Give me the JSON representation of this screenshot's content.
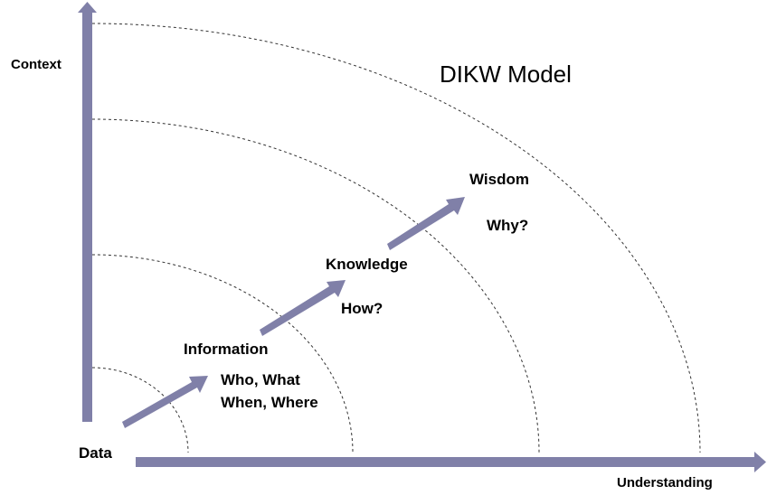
{
  "title": "DIKW Model",
  "axes": {
    "y_label": "Context",
    "x_label": "Understanding"
  },
  "stages": {
    "data": {
      "label": "Data"
    },
    "information": {
      "label": "Information",
      "question_line1": "Who, What",
      "question_line2": "When, Where"
    },
    "knowledge": {
      "label": "Knowledge",
      "question": "How?"
    },
    "wisdom": {
      "label": "Wisdom",
      "question": "Why?"
    }
  },
  "colors": {
    "arrow": "#8080a8",
    "arc": "#333333",
    "text": "#000000"
  }
}
